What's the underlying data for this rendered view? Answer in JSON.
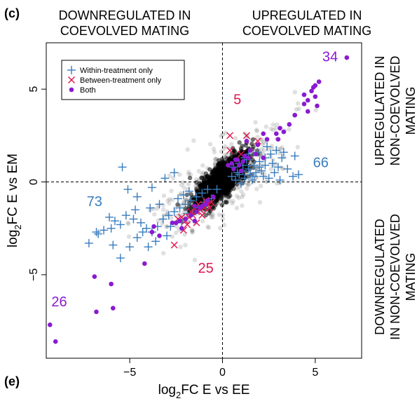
{
  "chart_data": {
    "type": "scatter",
    "panel_label_top": "(c)",
    "panel_label_bottom": "(e)",
    "title": "",
    "xlabel": {
      "prefix": "log",
      "subscript": "2",
      "suffix": "FC E vs EE"
    },
    "ylabel": {
      "prefix": "log",
      "subscript": "2",
      "suffix": "FC E vs EM"
    },
    "xlim": [
      -9.5,
      7.5
    ],
    "ylim": [
      -9.5,
      7.5
    ],
    "xticks": [
      -5,
      0,
      5
    ],
    "yticks": [
      -5,
      0,
      5
    ],
    "grid": false,
    "reference_lines": {
      "x": 0,
      "y": 0,
      "style": "dashed"
    },
    "quadrant_labels": {
      "top_left": [
        "DOWNREGULATED IN",
        "COEVOLVED MATING"
      ],
      "top_right": [
        "UPREGULATED IN",
        "COEVOLVED MATING"
      ],
      "right_upper": [
        "UPREGULATED IN",
        "NON-COEVOLVED",
        "MATING"
      ],
      "right_lower": [
        "DOWNREGULATED",
        "IN NON-COEVOLVED",
        "MATING"
      ]
    },
    "legend": {
      "placement": "top-left",
      "entries": [
        {
          "label": "Within-treatment only",
          "marker": "plus",
          "color": "#3a7dbd"
        },
        {
          "label": "Between-treatment only",
          "marker": "x",
          "color": "#e0174f"
        },
        {
          "label": "Both",
          "marker": "dot",
          "color": "#8a1ad0"
        }
      ]
    },
    "counts": [
      {
        "label": "34",
        "x": 5.8,
        "y": 6.7,
        "color": "#8a1ad0"
      },
      {
        "label": "5",
        "x": 0.8,
        "y": 4.4,
        "color": "#e0174f"
      },
      {
        "label": "66",
        "x": 5.3,
        "y": 1.0,
        "color": "#3a7dbd"
      },
      {
        "label": "73",
        "x": -6.9,
        "y": -1.1,
        "color": "#3a7dbd"
      },
      {
        "label": "25",
        "x": -0.9,
        "y": -4.7,
        "color": "#e0174f"
      },
      {
        "label": "26",
        "x": -8.8,
        "y": -6.5,
        "color": "#8a1ad0"
      }
    ],
    "series": [
      {
        "name": "Within-treatment only",
        "marker": "plus",
        "color": "#3a7dbd",
        "points": [
          [
            -5.4,
            0.8
          ],
          [
            -5.1,
            -0.4
          ],
          [
            -4.6,
            -0.8
          ],
          [
            -3.8,
            -0.3
          ],
          [
            -3.1,
            0.2
          ],
          [
            -2.6,
            0.5
          ],
          [
            -5.2,
            -1.8
          ],
          [
            -4.8,
            -2.0
          ],
          [
            -4.4,
            -2.2
          ],
          [
            -4.1,
            -2.5
          ],
          [
            -3.8,
            -2.7
          ],
          [
            -3.5,
            -2.4
          ],
          [
            -3.2,
            -2.0
          ],
          [
            -2.9,
            -1.8
          ],
          [
            -2.6,
            -1.6
          ],
          [
            -2.3,
            -1.4
          ],
          [
            -2.0,
            -1.2
          ],
          [
            -1.7,
            -1.0
          ],
          [
            -1.4,
            -0.8
          ],
          [
            -1.1,
            -0.6
          ],
          [
            -0.8,
            -0.4
          ],
          [
            -2.4,
            -0.9
          ],
          [
            -2.1,
            -0.7
          ],
          [
            -1.8,
            -0.5
          ],
          [
            -6.1,
            -1.9
          ],
          [
            -5.8,
            -2.1
          ],
          [
            -5.5,
            -2.3
          ],
          [
            -6.7,
            -2.8
          ],
          [
            -6.4,
            -2.6
          ],
          [
            -5.9,
            -3.4
          ],
          [
            -5.5,
            -4.1
          ],
          [
            -5.0,
            -3.5
          ],
          [
            -4.6,
            -3.0
          ],
          [
            -4.3,
            -2.7
          ],
          [
            -7.2,
            -3.3
          ],
          [
            -4.0,
            -3.5
          ],
          [
            -3.6,
            -3.2
          ],
          [
            -3.0,
            -2.9
          ],
          [
            -2.8,
            -2.4
          ],
          [
            -2.2,
            -2.2
          ],
          [
            -1.9,
            -1.7
          ],
          [
            -1.3,
            -1.4
          ],
          [
            -1.0,
            -1.1
          ],
          [
            -0.6,
            -0.9
          ],
          [
            -0.3,
            -0.4
          ],
          [
            -4.7,
            -1.5
          ],
          [
            -3.9,
            -1.4
          ],
          [
            -3.4,
            -1.2
          ],
          [
            -6.8,
            -2.7
          ],
          [
            -6.0,
            -2.5
          ],
          [
            0.5,
            0.3
          ],
          [
            0.8,
            0.5
          ],
          [
            1.1,
            0.6
          ],
          [
            1.4,
            0.7
          ],
          [
            1.7,
            0.9
          ],
          [
            2.0,
            1.1
          ],
          [
            2.3,
            1.3
          ],
          [
            2.6,
            1.5
          ],
          [
            2.9,
            1.7
          ],
          [
            3.2,
            1.3
          ],
          [
            1.2,
            0.2
          ],
          [
            1.5,
            0.4
          ],
          [
            1.8,
            0.5
          ],
          [
            2.1,
            0.6
          ],
          [
            0.6,
            0.8
          ],
          [
            0.9,
            1.0
          ],
          [
            1.3,
            1.2
          ],
          [
            1.9,
            1.6
          ],
          [
            2.4,
            1.9
          ],
          [
            2.7,
            1.0
          ],
          [
            3.0,
            0.8
          ],
          [
            3.5,
            0.7
          ],
          [
            3.9,
            1.4
          ],
          [
            3.8,
            0.3
          ],
          [
            4.1,
            0.4
          ],
          [
            1.0,
            -0.1
          ],
          [
            1.6,
            0.1
          ],
          [
            2.2,
            0.3
          ],
          [
            2.5,
            0.2
          ],
          [
            0.7,
            0.1
          ],
          [
            1.4,
            1.5
          ],
          [
            2.8,
            0.5
          ],
          [
            3.1,
            0.1
          ],
          [
            1.1,
            0.9
          ],
          [
            2.0,
            0.8
          ],
          [
            0.9,
            0.4
          ],
          [
            1.7,
            0.3
          ],
          [
            2.3,
            0.9
          ],
          [
            3.3,
            1.6
          ],
          [
            1.2,
            1.3
          ]
        ]
      },
      {
        "name": "Between-treatment only",
        "marker": "x",
        "color": "#e0174f",
        "points": [
          [
            0.4,
            2.5
          ],
          [
            1.3,
            2.5
          ],
          [
            1.9,
            2.2
          ],
          [
            0.4,
            1.7
          ],
          [
            1.0,
            1.5
          ],
          [
            -0.6,
            -1.1
          ],
          [
            -0.8,
            -1.2
          ],
          [
            -1.0,
            -1.4
          ],
          [
            -1.2,
            -1.5
          ],
          [
            -1.4,
            -1.6
          ],
          [
            -1.6,
            -1.8
          ],
          [
            -1.8,
            -1.9
          ],
          [
            -2.0,
            -2.1
          ],
          [
            -2.2,
            -1.9
          ],
          [
            -1.3,
            -1.2
          ],
          [
            -0.9,
            -1.0
          ],
          [
            -1.5,
            -1.4
          ],
          [
            -1.7,
            -1.6
          ],
          [
            -1.9,
            -2.3
          ],
          [
            -1.1,
            -1.8
          ],
          [
            -0.7,
            -1.4
          ],
          [
            -2.4,
            -2.0
          ],
          [
            -2.1,
            -2.6
          ],
          [
            -2.6,
            -3.4
          ],
          [
            -1.4,
            -2.2
          ]
        ]
      },
      {
        "name": "Both",
        "marker": "dot",
        "color": "#8a1ad0",
        "points": [
          [
            6.7,
            6.7
          ],
          [
            5.2,
            5.4
          ],
          [
            5.0,
            5.2
          ],
          [
            4.9,
            5.1
          ],
          [
            4.8,
            4.9
          ],
          [
            5.0,
            4.6
          ],
          [
            4.4,
            4.7
          ],
          [
            4.6,
            4.4
          ],
          [
            4.4,
            4.2
          ],
          [
            5.1,
            4.1
          ],
          [
            4.6,
            3.8
          ],
          [
            3.9,
            3.6
          ],
          [
            3.6,
            3.1
          ],
          [
            3.1,
            2.9
          ],
          [
            2.9,
            2.6
          ],
          [
            3.3,
            2.7
          ],
          [
            3.0,
            2.3
          ],
          [
            2.4,
            2.3
          ],
          [
            2.2,
            2.6
          ],
          [
            1.9,
            2.0
          ],
          [
            1.5,
            1.7
          ],
          [
            1.4,
            1.3
          ],
          [
            1.2,
            1.4
          ],
          [
            0.8,
            1.2
          ],
          [
            1.1,
            1.1
          ],
          [
            0.9,
            0.9
          ],
          [
            0.6,
            0.7
          ],
          [
            0.5,
            1.0
          ],
          [
            0.3,
            0.9
          ],
          [
            1.3,
            2.2
          ],
          [
            2.2,
            1.3
          ],
          [
            0.7,
            1.2
          ],
          [
            1.0,
            0.6
          ],
          [
            1.8,
            1.5
          ],
          [
            -0.5,
            -0.8
          ],
          [
            -0.8,
            -1.0
          ],
          [
            -1.1,
            -1.3
          ],
          [
            -1.4,
            -1.6
          ],
          [
            -1.7,
            -1.8
          ],
          [
            -2.0,
            -2.0
          ],
          [
            -2.3,
            -2.1
          ],
          [
            -2.5,
            -2.2
          ],
          [
            -1.2,
            -1.4
          ],
          [
            -0.9,
            -1.2
          ],
          [
            -1.5,
            -1.3
          ],
          [
            -2.2,
            -2.5
          ],
          [
            -1.5,
            -2.1
          ],
          [
            -2.7,
            -2.2
          ],
          [
            -3.7,
            -2.4
          ],
          [
            -3.4,
            -2.9
          ],
          [
            -3.8,
            -2.7
          ],
          [
            -6.9,
            -5.1
          ],
          [
            -6.0,
            -5.5
          ],
          [
            -6.8,
            -7.0
          ],
          [
            -5.9,
            -6.8
          ],
          [
            -9.3,
            -7.7
          ],
          [
            -9.0,
            -8.6
          ],
          [
            -4.2,
            -4.4
          ]
        ]
      }
    ]
  }
}
